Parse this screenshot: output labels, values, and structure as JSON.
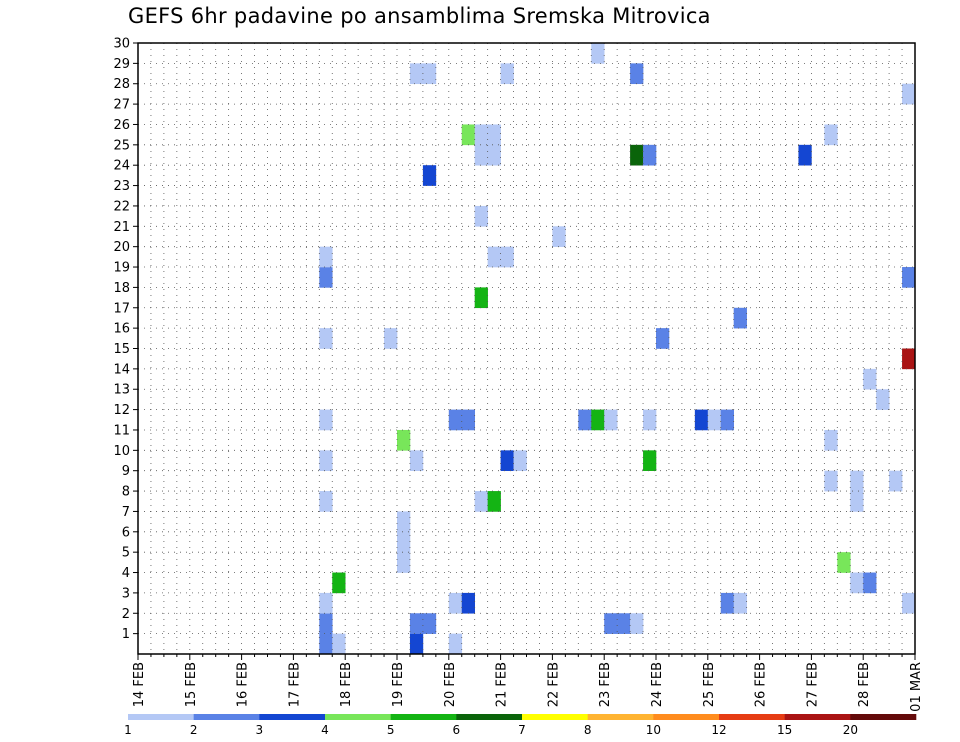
{
  "chart_data": {
    "type": "heatmap",
    "title": "GEFS 6hr padavine po ansamblima Sremska Mitrovica",
    "x_tick_labels": [
      "14 FEB",
      "15 FEB",
      "16 FEB",
      "17 FEB",
      "18 FEB",
      "19 FEB",
      "20 FEB",
      "21 FEB",
      "22 FEB",
      "23 FEB",
      "24 FEB",
      "25 FEB",
      "26 FEB",
      "27 FEB",
      "28 FEB",
      "01 MAR"
    ],
    "y_tick_labels": [
      "1",
      "2",
      "3",
      "4",
      "5",
      "6",
      "7",
      "8",
      "9",
      "10",
      "11",
      "12",
      "13",
      "14",
      "15",
      "16",
      "17",
      "18",
      "19",
      "20",
      "21",
      "22",
      "23",
      "24",
      "25",
      "26",
      "27",
      "28",
      "29",
      "30"
    ],
    "ylim": [
      0,
      30
    ],
    "x_unit": "6-hour steps from 14 FEB",
    "grid": "dotted",
    "colorbar": {
      "tick_labels": [
        "1",
        "2",
        "3",
        "4",
        "5",
        "6",
        "7",
        "8",
        "10",
        "12",
        "15",
        "20"
      ],
      "colors": [
        "#b4c8f5",
        "#5a82e6",
        "#1446d2",
        "#78e65a",
        "#14b414",
        "#0a640a",
        "#ffff00",
        "#ffb432",
        "#ff8c1e",
        "#e63c14",
        "#aa1414",
        "#640a0a"
      ]
    },
    "cells": [
      {
        "t": 14,
        "m": 0,
        "c": 1
      },
      {
        "t": 14,
        "m": 1,
        "c": 1
      },
      {
        "t": 15,
        "m": 0,
        "c": 0
      },
      {
        "t": 14,
        "m": 2,
        "c": 0
      },
      {
        "t": 15,
        "m": 3,
        "c": 4
      },
      {
        "t": 14,
        "m": 7,
        "c": 0
      },
      {
        "t": 14,
        "m": 9,
        "c": 0
      },
      {
        "t": 14,
        "m": 11,
        "c": 0
      },
      {
        "t": 14,
        "m": 15,
        "c": 0
      },
      {
        "t": 14,
        "m": 18,
        "c": 1
      },
      {
        "t": 14,
        "m": 19,
        "c": 0
      },
      {
        "t": 19,
        "m": 15,
        "c": 0
      },
      {
        "t": 20,
        "m": 4,
        "c": 0
      },
      {
        "t": 20,
        "m": 5,
        "c": 0
      },
      {
        "t": 20,
        "m": 6,
        "c": 0
      },
      {
        "t": 20,
        "m": 10,
        "c": 3
      },
      {
        "t": 21,
        "m": 0,
        "c": 2
      },
      {
        "t": 21,
        "m": 1,
        "c": 1
      },
      {
        "t": 22,
        "m": 1,
        "c": 1
      },
      {
        "t": 21,
        "m": 9,
        "c": 0
      },
      {
        "t": 21,
        "m": 28,
        "c": 0
      },
      {
        "t": 22,
        "m": 28,
        "c": 0
      },
      {
        "t": 22,
        "m": 23,
        "c": 2
      },
      {
        "t": 24,
        "m": 0,
        "c": 0
      },
      {
        "t": 24,
        "m": 2,
        "c": 0
      },
      {
        "t": 25,
        "m": 2,
        "c": 2
      },
      {
        "t": 24,
        "m": 11,
        "c": 1
      },
      {
        "t": 25,
        "m": 11,
        "c": 1
      },
      {
        "t": 25,
        "m": 25,
        "c": 3
      },
      {
        "t": 26,
        "m": 25,
        "c": 0
      },
      {
        "t": 27,
        "m": 25,
        "c": 0
      },
      {
        "t": 26,
        "m": 24,
        "c": 0
      },
      {
        "t": 27,
        "m": 24,
        "c": 0
      },
      {
        "t": 26,
        "m": 7,
        "c": 0
      },
      {
        "t": 27,
        "m": 7,
        "c": 4
      },
      {
        "t": 26,
        "m": 17,
        "c": 4
      },
      {
        "t": 26,
        "m": 21,
        "c": 0
      },
      {
        "t": 27,
        "m": 19,
        "c": 0
      },
      {
        "t": 28,
        "m": 19,
        "c": 0
      },
      {
        "t": 28,
        "m": 9,
        "c": 2
      },
      {
        "t": 29,
        "m": 9,
        "c": 0
      },
      {
        "t": 28,
        "m": 28,
        "c": 0
      },
      {
        "t": 32,
        "m": 20,
        "c": 0
      },
      {
        "t": 34,
        "m": 11,
        "c": 1
      },
      {
        "t": 35,
        "m": 11,
        "c": 4
      },
      {
        "t": 36,
        "m": 11,
        "c": 0
      },
      {
        "t": 35,
        "m": 29,
        "c": 0
      },
      {
        "t": 36,
        "m": 1,
        "c": 1
      },
      {
        "t": 37,
        "m": 1,
        "c": 1
      },
      {
        "t": 38,
        "m": 1,
        "c": 0
      },
      {
        "t": 38,
        "m": 28,
        "c": 1
      },
      {
        "t": 38,
        "m": 24,
        "c": 5
      },
      {
        "t": 39,
        "m": 24,
        "c": 1
      },
      {
        "t": 39,
        "m": 11,
        "c": 0
      },
      {
        "t": 39,
        "m": 9,
        "c": 4
      },
      {
        "t": 40,
        "m": 15,
        "c": 1
      },
      {
        "t": 43,
        "m": 11,
        "c": 2
      },
      {
        "t": 44,
        "m": 11,
        "c": 0
      },
      {
        "t": 45,
        "m": 11,
        "c": 1
      },
      {
        "t": 45,
        "m": 2,
        "c": 1
      },
      {
        "t": 46,
        "m": 2,
        "c": 0
      },
      {
        "t": 46,
        "m": 16,
        "c": 1
      },
      {
        "t": 51,
        "m": 24,
        "c": 2
      },
      {
        "t": 53,
        "m": 25,
        "c": 0
      },
      {
        "t": 53,
        "m": 10,
        "c": 0
      },
      {
        "t": 53,
        "m": 8,
        "c": 0
      },
      {
        "t": 54,
        "m": 4,
        "c": 3
      },
      {
        "t": 55,
        "m": 3,
        "c": 0
      },
      {
        "t": 56,
        "m": 3,
        "c": 1
      },
      {
        "t": 55,
        "m": 8,
        "c": 0
      },
      {
        "t": 55,
        "m": 7,
        "c": 0
      },
      {
        "t": 56,
        "m": 13,
        "c": 0
      },
      {
        "t": 57,
        "m": 12,
        "c": 0
      },
      {
        "t": 58,
        "m": 8,
        "c": 0
      },
      {
        "t": 59,
        "m": 2,
        "c": 0
      },
      {
        "t": 59,
        "m": 14,
        "c": 10
      },
      {
        "t": 59,
        "m": 18,
        "c": 1
      },
      {
        "t": 59,
        "m": 27,
        "c": 0
      }
    ]
  }
}
